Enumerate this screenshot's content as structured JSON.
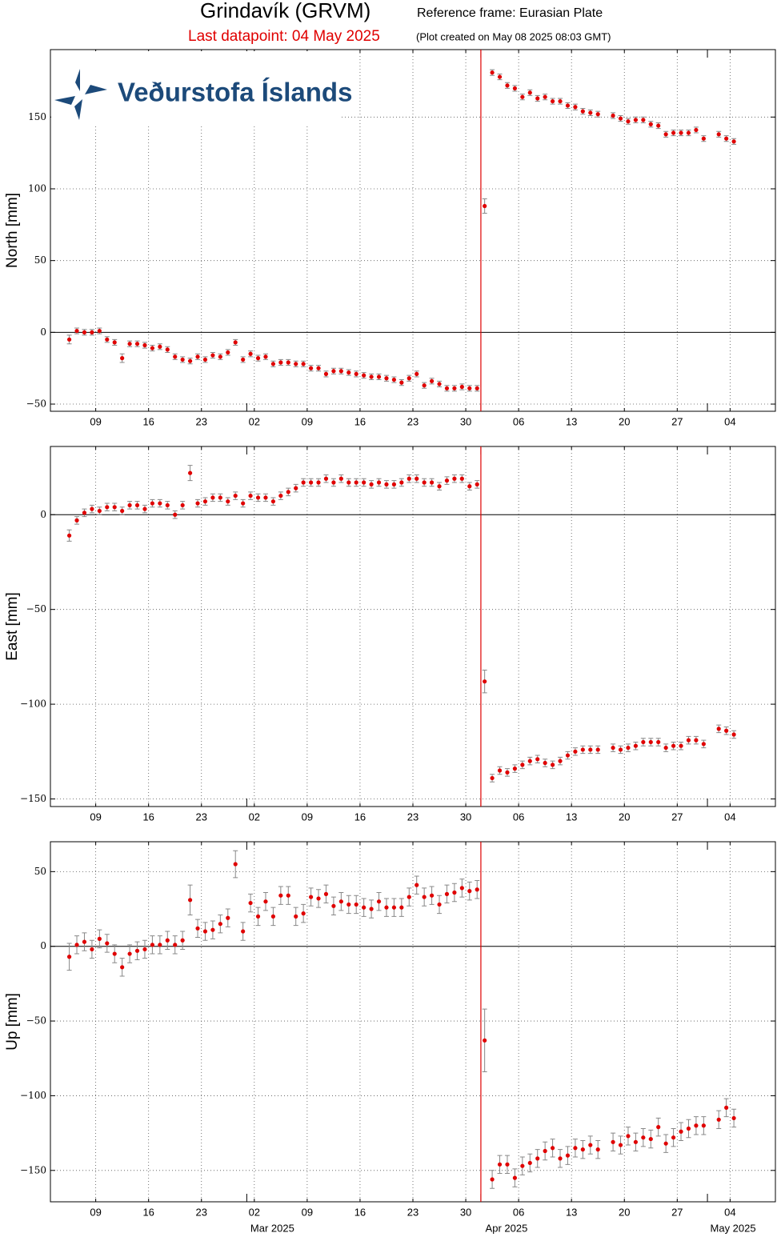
{
  "header": {
    "title": "Grindavík (GRVM)",
    "reference": "Reference frame: Eurasian Plate",
    "last_datapoint": "Last datapoint: 04 May 2025",
    "created": "(Plot created on May 08 2025 08:03 GMT)"
  },
  "logo_text": "Veðurstofa Íslands",
  "chart_data": [
    {
      "type": "scatter",
      "ylabel": "North [mm]",
      "color": "#e00000",
      "event_date": "2025-04-01",
      "event_color": "#e00000",
      "grid": true,
      "xlim": [
        "2025-02-03",
        "2025-05-10"
      ],
      "ylim": [
        -55,
        197
      ],
      "yticks": [
        {
          "value": -50,
          "label": "−50"
        },
        0,
        50,
        100,
        150
      ],
      "xticks": [
        {
          "value": "2025-02-09",
          "label": "09"
        },
        {
          "value": "2025-02-16",
          "label": "16"
        },
        {
          "value": "2025-02-23",
          "label": "23"
        },
        {
          "value": "2025-03-02",
          "label": "02"
        },
        {
          "value": "2025-03-09",
          "label": "09"
        },
        {
          "value": "2025-03-16",
          "label": "16"
        },
        {
          "value": "2025-03-23",
          "label": "23"
        },
        {
          "value": "2025-03-30",
          "label": "30"
        },
        {
          "value": "2025-04-06",
          "label": "06"
        },
        {
          "value": "2025-04-13",
          "label": "13"
        },
        {
          "value": "2025-04-20",
          "label": "20"
        },
        {
          "value": "2025-04-27",
          "label": "27"
        },
        {
          "value": "2025-05-04",
          "label": "04"
        }
      ],
      "major_xticks": [
        "2025-03-01",
        "2025-04-01",
        "2025-05-01"
      ],
      "x": [
        "2025-02-05",
        "2025-02-06",
        "2025-02-07",
        "2025-02-08",
        "2025-02-09",
        "2025-02-10",
        "2025-02-11",
        "2025-02-12",
        "2025-02-13",
        "2025-02-14",
        "2025-02-15",
        "2025-02-16",
        "2025-02-17",
        "2025-02-18",
        "2025-02-19",
        "2025-02-20",
        "2025-02-21",
        "2025-02-22",
        "2025-02-23",
        "2025-02-24",
        "2025-02-25",
        "2025-02-26",
        "2025-02-27",
        "2025-02-28",
        "2025-03-01",
        "2025-03-02",
        "2025-03-03",
        "2025-03-04",
        "2025-03-05",
        "2025-03-06",
        "2025-03-07",
        "2025-03-08",
        "2025-03-09",
        "2025-03-10",
        "2025-03-11",
        "2025-03-12",
        "2025-03-13",
        "2025-03-14",
        "2025-03-15",
        "2025-03-16",
        "2025-03-17",
        "2025-03-18",
        "2025-03-19",
        "2025-03-20",
        "2025-03-21",
        "2025-03-22",
        "2025-03-23",
        "2025-03-24",
        "2025-03-25",
        "2025-03-26",
        "2025-03-27",
        "2025-03-28",
        "2025-03-29",
        "2025-03-30",
        "2025-03-31",
        "2025-04-01",
        "2025-04-02",
        "2025-04-03",
        "2025-04-04",
        "2025-04-05",
        "2025-04-06",
        "2025-04-07",
        "2025-04-08",
        "2025-04-09",
        "2025-04-10",
        "2025-04-11",
        "2025-04-12",
        "2025-04-13",
        "2025-04-14",
        "2025-04-15",
        "2025-04-16",
        "2025-04-18",
        "2025-04-19",
        "2025-04-20",
        "2025-04-21",
        "2025-04-22",
        "2025-04-23",
        "2025-04-24",
        "2025-04-25",
        "2025-04-26",
        "2025-04-27",
        "2025-04-28",
        "2025-04-29",
        "2025-04-30",
        "2025-05-02",
        "2025-05-03",
        "2025-05-04"
      ],
      "values": [
        -5,
        1,
        0,
        0,
        1,
        -5,
        -7,
        -18,
        -8,
        -8,
        -9,
        -11,
        -10,
        -12,
        -17,
        -19,
        -20,
        -17,
        -19,
        -16,
        -17,
        -14,
        -7,
        -19,
        -15,
        -18,
        -17,
        -22,
        -21,
        -21,
        -22,
        -22,
        -25,
        -25,
        -29,
        -27,
        -27,
        -28,
        -29,
        -30,
        -31,
        -31,
        -32,
        -33,
        -35,
        -32,
        -29,
        -37,
        -34,
        -36,
        -39,
        -39,
        -38,
        -39,
        -39,
        88,
        181,
        178,
        172,
        170,
        164,
        167,
        163,
        164,
        161,
        161,
        158,
        157,
        154,
        153,
        152,
        151,
        149,
        147,
        148,
        148,
        145,
        144,
        138,
        139,
        139,
        139,
        141,
        135,
        138,
        135,
        133
      ],
      "errors": [
        3,
        2,
        2,
        2,
        2,
        2,
        2,
        3,
        2,
        2,
        2,
        2,
        2,
        2,
        2,
        2,
        2,
        2,
        2,
        2,
        2,
        2,
        2,
        2,
        2,
        2,
        2,
        2,
        2,
        2,
        2,
        2,
        2,
        2,
        2,
        2,
        2,
        2,
        2,
        2,
        2,
        2,
        2,
        2,
        2,
        2,
        2,
        2,
        2,
        2,
        2,
        2,
        2,
        2,
        2,
        5,
        2,
        2,
        2,
        2,
        2,
        2,
        2,
        2,
        2,
        2,
        2,
        2,
        2,
        2,
        2,
        2,
        2,
        2,
        2,
        2,
        2,
        2,
        2,
        2,
        2,
        2,
        2,
        2,
        2,
        2,
        2
      ]
    },
    {
      "type": "scatter",
      "ylabel": "East [mm]",
      "color": "#e00000",
      "event_date": "2025-04-01",
      "event_color": "#e00000",
      "grid": true,
      "xlim": [
        "2025-02-03",
        "2025-05-10"
      ],
      "ylim": [
        -154,
        36
      ],
      "yticks": [
        {
          "value": -150,
          "label": "−150"
        },
        {
          "value": -100,
          "label": "−100"
        },
        {
          "value": -50,
          "label": "−50"
        },
        0
      ],
      "xticks": [
        {
          "value": "2025-02-09",
          "label": "09"
        },
        {
          "value": "2025-02-16",
          "label": "16"
        },
        {
          "value": "2025-02-23",
          "label": "23"
        },
        {
          "value": "2025-03-02",
          "label": "02"
        },
        {
          "value": "2025-03-09",
          "label": "09"
        },
        {
          "value": "2025-03-16",
          "label": "16"
        },
        {
          "value": "2025-03-23",
          "label": "23"
        },
        {
          "value": "2025-03-30",
          "label": "30"
        },
        {
          "value": "2025-04-06",
          "label": "06"
        },
        {
          "value": "2025-04-13",
          "label": "13"
        },
        {
          "value": "2025-04-20",
          "label": "20"
        },
        {
          "value": "2025-04-27",
          "label": "27"
        },
        {
          "value": "2025-05-04",
          "label": "04"
        }
      ],
      "major_xticks": [
        "2025-03-01",
        "2025-04-01",
        "2025-05-01"
      ],
      "x": [
        "2025-02-05",
        "2025-02-06",
        "2025-02-07",
        "2025-02-08",
        "2025-02-09",
        "2025-02-10",
        "2025-02-11",
        "2025-02-12",
        "2025-02-13",
        "2025-02-14",
        "2025-02-15",
        "2025-02-16",
        "2025-02-17",
        "2025-02-18",
        "2025-02-19",
        "2025-02-20",
        "2025-02-21",
        "2025-02-22",
        "2025-02-23",
        "2025-02-24",
        "2025-02-25",
        "2025-02-26",
        "2025-02-27",
        "2025-02-28",
        "2025-03-01",
        "2025-03-02",
        "2025-03-03",
        "2025-03-04",
        "2025-03-05",
        "2025-03-06",
        "2025-03-07",
        "2025-03-08",
        "2025-03-09",
        "2025-03-10",
        "2025-03-11",
        "2025-03-12",
        "2025-03-13",
        "2025-03-14",
        "2025-03-15",
        "2025-03-16",
        "2025-03-17",
        "2025-03-18",
        "2025-03-19",
        "2025-03-20",
        "2025-03-21",
        "2025-03-22",
        "2025-03-23",
        "2025-03-24",
        "2025-03-25",
        "2025-03-26",
        "2025-03-27",
        "2025-03-28",
        "2025-03-29",
        "2025-03-30",
        "2025-03-31",
        "2025-04-01",
        "2025-04-02",
        "2025-04-03",
        "2025-04-04",
        "2025-04-05",
        "2025-04-06",
        "2025-04-07",
        "2025-04-08",
        "2025-04-09",
        "2025-04-10",
        "2025-04-11",
        "2025-04-12",
        "2025-04-13",
        "2025-04-14",
        "2025-04-15",
        "2025-04-16",
        "2025-04-18",
        "2025-04-19",
        "2025-04-20",
        "2025-04-21",
        "2025-04-22",
        "2025-04-23",
        "2025-04-24",
        "2025-04-25",
        "2025-04-26",
        "2025-04-27",
        "2025-04-28",
        "2025-04-29",
        "2025-04-30",
        "2025-05-02",
        "2025-05-03",
        "2025-05-04"
      ],
      "values": [
        -11,
        -3,
        1,
        3,
        2,
        4,
        4,
        2,
        5,
        5,
        3,
        6,
        6,
        5,
        0,
        5,
        22,
        6,
        7,
        9,
        9,
        7,
        10,
        6,
        10,
        9,
        9,
        7,
        10,
        12,
        14,
        17,
        17,
        17,
        19,
        17,
        19,
        17,
        17,
        17,
        16,
        17,
        16,
        16,
        17,
        19,
        19,
        17,
        17,
        15,
        18,
        19,
        19,
        15,
        16,
        -88,
        -139,
        -135,
        -136,
        -134,
        -132,
        -130,
        -129,
        -131,
        -132,
        -130,
        -127,
        -125,
        -124,
        -124,
        -124,
        -123,
        -124,
        -123,
        -122,
        -120,
        -120,
        -120,
        -123,
        -122,
        -122,
        -119,
        -119,
        -121,
        -113,
        -114,
        -116
      ],
      "errors": [
        3,
        2,
        2,
        2,
        2,
        2,
        2,
        2,
        2,
        2,
        2,
        2,
        2,
        2,
        2,
        2,
        4,
        2,
        2,
        2,
        2,
        2,
        2,
        2,
        2,
        2,
        2,
        2,
        2,
        2,
        2,
        2,
        2,
        2,
        2,
        2,
        2,
        2,
        2,
        2,
        2,
        2,
        2,
        2,
        2,
        2,
        2,
        2,
        2,
        2,
        2,
        2,
        2,
        2,
        2,
        6,
        2,
        2,
        2,
        2,
        2,
        2,
        2,
        2,
        2,
        2,
        2,
        2,
        2,
        2,
        2,
        2,
        2,
        2,
        2,
        2,
        2,
        2,
        2,
        2,
        2,
        2,
        2,
        2,
        2,
        2,
        2
      ]
    },
    {
      "type": "scatter",
      "ylabel": "Up [mm]",
      "color": "#e00000",
      "event_date": "2025-04-01",
      "event_color": "#e00000",
      "grid": true,
      "xlim": [
        "2025-02-03",
        "2025-05-10"
      ],
      "ylim": [
        -171,
        70
      ],
      "yticks": [
        {
          "value": -150,
          "label": "−150"
        },
        {
          "value": -100,
          "label": "−100"
        },
        {
          "value": -50,
          "label": "−50"
        },
        0,
        50
      ],
      "xticks": [
        {
          "value": "2025-02-09",
          "label": "09"
        },
        {
          "value": "2025-02-16",
          "label": "16"
        },
        {
          "value": "2025-02-23",
          "label": "23"
        },
        {
          "value": "2025-03-02",
          "label": "02"
        },
        {
          "value": "2025-03-09",
          "label": "09"
        },
        {
          "value": "2025-03-16",
          "label": "16"
        },
        {
          "value": "2025-03-23",
          "label": "23"
        },
        {
          "value": "2025-03-30",
          "label": "30"
        },
        {
          "value": "2025-04-06",
          "label": "06"
        },
        {
          "value": "2025-04-13",
          "label": "13"
        },
        {
          "value": "2025-04-20",
          "label": "20"
        },
        {
          "value": "2025-04-27",
          "label": "27"
        },
        {
          "value": "2025-05-04",
          "label": "04"
        }
      ],
      "major_xticks": [
        {
          "value": "2025-03-01",
          "label": "Mar 2025"
        },
        {
          "value": "2025-04-01",
          "label": "Apr 2025"
        },
        {
          "value": "2025-05-01",
          "label": "May 2025"
        }
      ],
      "x": [
        "2025-02-05",
        "2025-02-06",
        "2025-02-07",
        "2025-02-08",
        "2025-02-09",
        "2025-02-10",
        "2025-02-11",
        "2025-02-12",
        "2025-02-13",
        "2025-02-14",
        "2025-02-15",
        "2025-02-16",
        "2025-02-17",
        "2025-02-18",
        "2025-02-19",
        "2025-02-20",
        "2025-02-21",
        "2025-02-22",
        "2025-02-23",
        "2025-02-24",
        "2025-02-25",
        "2025-02-26",
        "2025-02-27",
        "2025-02-28",
        "2025-03-01",
        "2025-03-02",
        "2025-03-03",
        "2025-03-04",
        "2025-03-05",
        "2025-03-06",
        "2025-03-07",
        "2025-03-08",
        "2025-03-09",
        "2025-03-10",
        "2025-03-11",
        "2025-03-12",
        "2025-03-13",
        "2025-03-14",
        "2025-03-15",
        "2025-03-16",
        "2025-03-17",
        "2025-03-18",
        "2025-03-19",
        "2025-03-20",
        "2025-03-21",
        "2025-03-22",
        "2025-03-23",
        "2025-03-24",
        "2025-03-25",
        "2025-03-26",
        "2025-03-27",
        "2025-03-28",
        "2025-03-29",
        "2025-03-30",
        "2025-03-31",
        "2025-04-01",
        "2025-04-02",
        "2025-04-03",
        "2025-04-04",
        "2025-04-05",
        "2025-04-06",
        "2025-04-07",
        "2025-04-08",
        "2025-04-09",
        "2025-04-10",
        "2025-04-11",
        "2025-04-12",
        "2025-04-13",
        "2025-04-14",
        "2025-04-15",
        "2025-04-16",
        "2025-04-18",
        "2025-04-19",
        "2025-04-20",
        "2025-04-21",
        "2025-04-22",
        "2025-04-23",
        "2025-04-24",
        "2025-04-25",
        "2025-04-26",
        "2025-04-27",
        "2025-04-28",
        "2025-04-29",
        "2025-04-30",
        "2025-05-02",
        "2025-05-03",
        "2025-05-04"
      ],
      "values": [
        -7,
        1,
        3,
        -2,
        5,
        2,
        -5,
        -14,
        -5,
        -3,
        -2,
        1,
        1,
        4,
        1,
        4,
        31,
        12,
        10,
        11,
        15,
        19,
        55,
        10,
        29,
        20,
        30,
        20,
        34,
        34,
        20,
        22,
        33,
        32,
        35,
        27,
        30,
        28,
        28,
        26,
        25,
        30,
        26,
        26,
        26,
        33,
        41,
        33,
        34,
        28,
        35,
        36,
        39,
        37,
        38,
        -63,
        -156,
        -146,
        -146,
        -155,
        -147,
        -145,
        -142,
        -137,
        -135,
        -142,
        -140,
        -135,
        -136,
        -133,
        -136,
        -131,
        -133,
        -127,
        -131,
        -128,
        -129,
        -121,
        -132,
        -128,
        -124,
        -122,
        -120,
        -120,
        -116,
        -108,
        -115
      ],
      "errors": [
        9,
        6,
        6,
        6,
        6,
        6,
        6,
        6,
        6,
        6,
        6,
        6,
        6,
        6,
        6,
        6,
        10,
        6,
        6,
        6,
        6,
        6,
        9,
        6,
        6,
        6,
        6,
        6,
        6,
        6,
        6,
        6,
        6,
        6,
        6,
        6,
        6,
        6,
        6,
        6,
        6,
        6,
        6,
        6,
        6,
        6,
        6,
        6,
        6,
        6,
        6,
        6,
        6,
        6,
        6,
        21,
        6,
        6,
        6,
        6,
        6,
        6,
        6,
        6,
        6,
        6,
        6,
        6,
        6,
        6,
        6,
        6,
        6,
        6,
        6,
        6,
        6,
        6,
        6,
        6,
        6,
        6,
        6,
        6,
        6,
        6,
        6
      ]
    }
  ]
}
